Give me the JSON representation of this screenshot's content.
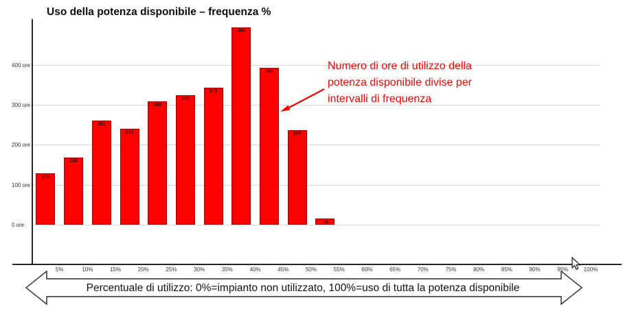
{
  "title": "Uso della potenza disponibile – frequenza %",
  "annotation": {
    "text": "Numero di ore di utilizzo della potenza disponibile divise per intervalli di frequenza",
    "color": "#fe0000"
  },
  "banner": {
    "text": "Percentuale di utilizzo: 0%=impianto non utilizzato, 100%=uso di tutta la potenza disponibile"
  },
  "colors": {
    "bar": "#fe0000",
    "bar_border": "#a50000",
    "gridline": "#d6d6d6",
    "axis": "#262626",
    "annotation": "#fe0000",
    "title": "#0d0d0d"
  },
  "chart_data": {
    "type": "bar",
    "title": "Uso della potenza disponibile – frequenza %",
    "categories": [
      "5%",
      "10%",
      "15%",
      "20%",
      "25%",
      "30%",
      "35%",
      "40%",
      "45%",
      "50%",
      "55%",
      "60%",
      "65%",
      "70%",
      "75%",
      "80%",
      "85%",
      "90%",
      "95%",
      "100%"
    ],
    "values": [
      128,
      168,
      261,
      241,
      309,
      325,
      343,
      494,
      393,
      237,
      16,
      0,
      0,
      0,
      0,
      0,
      0,
      0,
      0,
      0
    ],
    "bar_labels": [
      "128",
      "168",
      "261",
      "241",
      "309",
      "325",
      "343",
      "494",
      "393",
      "237",
      "16",
      "",
      "",
      "",
      "",
      "",
      "",
      "",
      "",
      ""
    ],
    "y_ticks": [
      0,
      100,
      200,
      300,
      400
    ],
    "y_tick_labels": [
      "0 ore",
      "100 ore",
      "200 ore",
      "300 ore",
      "400 ore"
    ],
    "ylim": [
      0,
      515
    ],
    "ylabel": "ore",
    "xlabel": "Percentuale di utilizzo",
    "grid": true,
    "legend": false,
    "series_color": "#fe0000"
  }
}
